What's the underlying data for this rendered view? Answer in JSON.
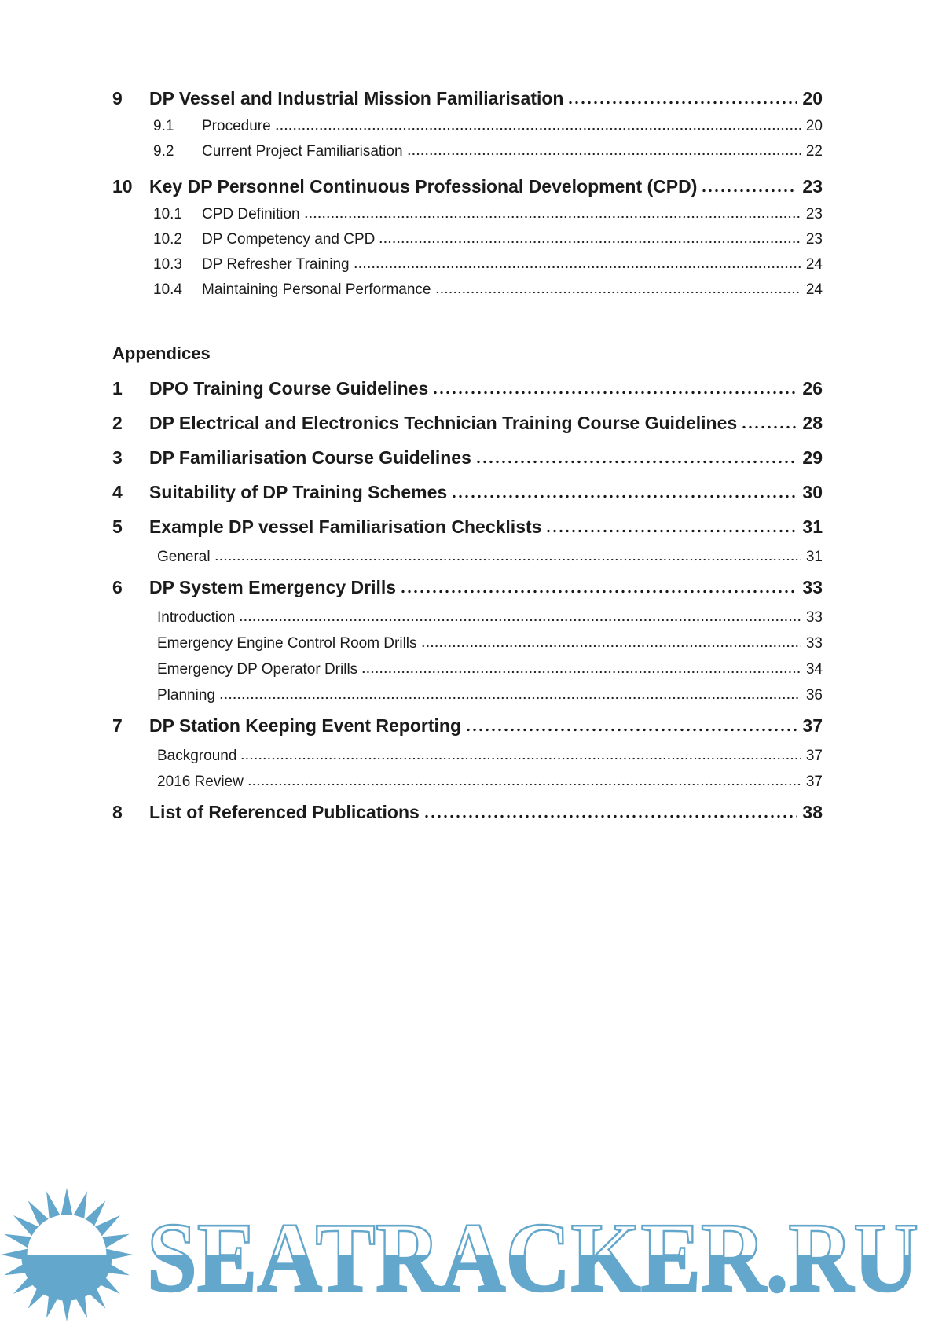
{
  "colors": {
    "ink": "#1b1b1b",
    "watermark_blue": "#64a7cc"
  },
  "toc": {
    "chapters": [
      {
        "num": "9",
        "title": "DP Vessel and Industrial Mission Familiarisation",
        "page": "20",
        "level": 1
      },
      {
        "num": "9.1",
        "title": "Procedure",
        "page": "20",
        "level": 2
      },
      {
        "num": "9.2",
        "title": "Current Project Familiarisation",
        "page": "22",
        "level": 2
      },
      {
        "num": "10",
        "title": "Key DP Personnel Continuous Professional Development (CPD)",
        "page": "23",
        "level": 1
      },
      {
        "num": "10.1",
        "title": "CPD Definition",
        "page": "23",
        "level": 2
      },
      {
        "num": "10.2",
        "title": "DP Competency and CPD",
        "page": "23",
        "level": 2
      },
      {
        "num": "10.3",
        "title": "DP Refresher Training",
        "page": "24",
        "level": 2
      },
      {
        "num": "10.4",
        "title": "Maintaining Personal Performance",
        "page": "24",
        "level": 2
      }
    ],
    "appendices_heading": "Appendices",
    "appendices": [
      {
        "num": "1",
        "title": "DPO Training Course Guidelines",
        "page": "26",
        "level": 1
      },
      {
        "num": "2",
        "title": "DP Electrical and Electronics Technician Training Course Guidelines",
        "page": "28",
        "level": 1
      },
      {
        "num": "3",
        "title": "DP Familiarisation Course Guidelines",
        "page": "29",
        "level": 1
      },
      {
        "num": "4",
        "title": "Suitability of DP Training Schemes",
        "page": "30",
        "level": 1
      },
      {
        "num": "5",
        "title": "Example DP vessel Familiarisation Checklists",
        "page": "31",
        "level": 1
      },
      {
        "num": "",
        "title": "General",
        "page": "31",
        "level": 2
      },
      {
        "num": "6",
        "title": "DP System Emergency Drills",
        "page": "33",
        "level": 1
      },
      {
        "num": "",
        "title": "Introduction",
        "page": "33",
        "level": 2
      },
      {
        "num": "",
        "title": "Emergency Engine Control Room Drills",
        "page": "33",
        "level": 2
      },
      {
        "num": "",
        "title": "Emergency DP Operator Drills",
        "page": "34",
        "level": 2
      },
      {
        "num": "",
        "title": "Planning",
        "page": "36",
        "level": 2
      },
      {
        "num": "7",
        "title": "DP Station Keeping Event Reporting",
        "page": "37",
        "level": 1
      },
      {
        "num": "",
        "title": "Background",
        "page": "37",
        "level": 2
      },
      {
        "num": "",
        "title": "2016 Review",
        "page": "37",
        "level": 2
      },
      {
        "num": "8",
        "title": "List of Referenced Publications",
        "page": "38",
        "level": 1
      }
    ]
  },
  "watermark": {
    "text": "SEATRACKER.RU",
    "icon": "sun-over-water-icon"
  }
}
